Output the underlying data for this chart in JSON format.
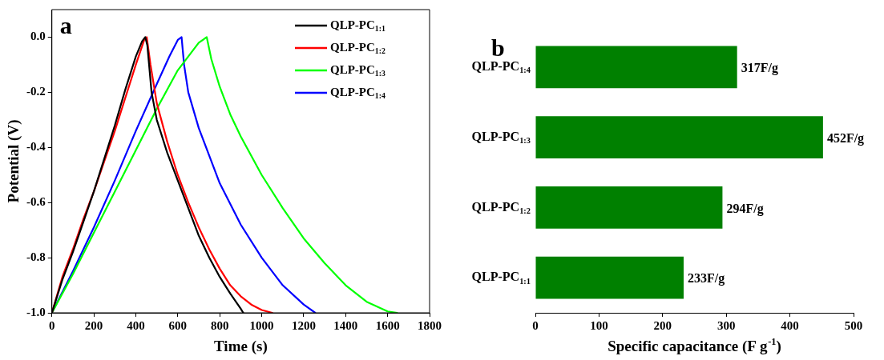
{
  "chart_data": [
    {
      "type": "line",
      "title": "a",
      "xlabel": "Time (s)",
      "ylabel": "Potential (V)",
      "xlim": [
        0,
        1800
      ],
      "xticks": [
        0,
        200,
        400,
        600,
        800,
        1000,
        1200,
        1400,
        1600,
        1800
      ],
      "ylim": [
        -1,
        0.1
      ],
      "yticks": [
        {
          "value": -1,
          "label": "-1.0"
        },
        {
          "value": -0.8,
          "label": "-0.8"
        },
        {
          "value": -0.6,
          "label": "-0.6"
        },
        {
          "value": -0.4,
          "label": "-0.4"
        },
        {
          "value": -0.2,
          "label": "-0.2"
        },
        {
          "value": 0,
          "label": "0.0"
        }
      ],
      "grid": false,
      "legend": "top right",
      "series": [
        {
          "name": "QLP-PC$_{1:1}$",
          "color": "#000000",
          "x": [
            0,
            50,
            100,
            150,
            200,
            250,
            300,
            350,
            400,
            430,
            445,
            455,
            475,
            500,
            550,
            600,
            650,
            700,
            750,
            800,
            850,
            900,
            912
          ],
          "values": [
            -1,
            -0.88,
            -0.78,
            -0.67,
            -0.56,
            -0.44,
            -0.32,
            -0.19,
            -0.07,
            -0.015,
            0,
            -0.03,
            -0.2,
            -0.3,
            -0.42,
            -0.52,
            -0.62,
            -0.72,
            -0.8,
            -0.87,
            -0.93,
            -0.985,
            -1
          ]
        },
        {
          "name": "QLP-PC$_{1:2}$",
          "color": "#ff0000",
          "x": [
            0,
            50,
            100,
            150,
            200,
            250,
            300,
            350,
            400,
            440,
            452,
            470,
            500,
            550,
            600,
            650,
            700,
            750,
            800,
            850,
            900,
            950,
            1000,
            1050
          ],
          "values": [
            -1,
            -0.87,
            -0.77,
            -0.66,
            -0.56,
            -0.45,
            -0.34,
            -0.22,
            -0.1,
            -0.01,
            0,
            -0.1,
            -0.24,
            -0.38,
            -0.5,
            -0.6,
            -0.69,
            -0.77,
            -0.84,
            -0.9,
            -0.94,
            -0.97,
            -0.99,
            -1
          ]
        },
        {
          "name": "QLP-PC$_{1:3}$",
          "color": "#00ff00",
          "x": [
            0,
            100,
            200,
            300,
            400,
            500,
            600,
            650,
            700,
            738,
            760,
            800,
            850,
            900,
            1000,
            1100,
            1200,
            1300,
            1400,
            1500,
            1600,
            1645
          ],
          "values": [
            -1,
            -0.86,
            -0.71,
            -0.56,
            -0.41,
            -0.26,
            -0.12,
            -0.07,
            -0.02,
            0,
            -0.08,
            -0.18,
            -0.28,
            -0.36,
            -0.5,
            -0.62,
            -0.73,
            -0.82,
            -0.9,
            -0.96,
            -0.995,
            -1
          ]
        },
        {
          "name": "QLP-PC$_{1:4}$",
          "color": "#0000ff",
          "x": [
            0,
            100,
            200,
            300,
            400,
            500,
            560,
            600,
            618,
            630,
            650,
            700,
            750,
            800,
            900,
            1000,
            1100,
            1200,
            1255
          ],
          "values": [
            -1,
            -0.85,
            -0.69,
            -0.52,
            -0.34,
            -0.17,
            -0.07,
            -0.01,
            0,
            -0.1,
            -0.2,
            -0.33,
            -0.43,
            -0.53,
            -0.68,
            -0.8,
            -0.9,
            -0.97,
            -1
          ]
        }
      ]
    },
    {
      "type": "bar",
      "title": "b",
      "orientation": "horizontal",
      "xlabel": "Specific capacitance (F g$^{-1}$)",
      "categories": [
        "QLP-PC$_{1:4}$",
        "QLP-PC$_{1:3}$",
        "QLP-PC$_{1:2}$",
        "QLP-PC$_{1:1}$"
      ],
      "values": [
        317,
        452,
        294,
        233
      ],
      "value_labels": [
        "317F/g",
        "452F/g",
        "294F/g",
        "233F/g"
      ],
      "color": "#008000",
      "xlim": [
        0,
        500
      ],
      "xticks": [
        0,
        100,
        200,
        300,
        400,
        500
      ],
      "grid": false,
      "legend": false
    }
  ]
}
